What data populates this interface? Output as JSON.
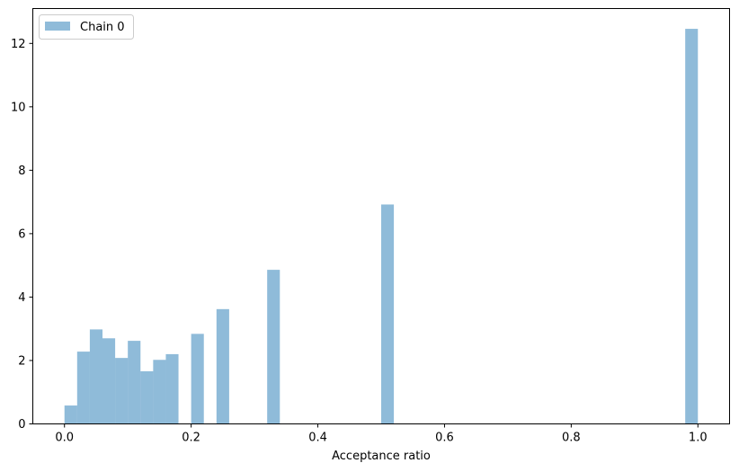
{
  "chart_data": {
    "type": "bar",
    "title": "",
    "xlabel": "Acceptance ratio",
    "ylabel": "",
    "xlim": [
      -0.05,
      1.05
    ],
    "ylim": [
      0,
      13.1
    ],
    "grid": false,
    "legend_placement": "top-left",
    "bin_width": 0.02,
    "x_ticks": [
      {
        "value": 0.0,
        "label": "0.0"
      },
      {
        "value": 0.2,
        "label": "0.2"
      },
      {
        "value": 0.4,
        "label": "0.4"
      },
      {
        "value": 0.6,
        "label": "0.6"
      },
      {
        "value": 0.8,
        "label": "0.8"
      },
      {
        "value": 1.0,
        "label": "1.0"
      }
    ],
    "y_ticks": [
      {
        "value": 0,
        "label": "0"
      },
      {
        "value": 2,
        "label": "2"
      },
      {
        "value": 4,
        "label": "4"
      },
      {
        "value": 6,
        "label": "6"
      },
      {
        "value": 8,
        "label": "8"
      },
      {
        "value": 10,
        "label": "10"
      },
      {
        "value": 12,
        "label": "12"
      }
    ],
    "series": [
      {
        "name": "Chain 0",
        "color": "#1f77b4",
        "opacity": 0.5,
        "bins": [
          {
            "x0": 0.0,
            "x1": 0.02,
            "value": 0.58
          },
          {
            "x0": 0.02,
            "x1": 0.04,
            "value": 2.28
          },
          {
            "x0": 0.04,
            "x1": 0.06,
            "value": 2.98
          },
          {
            "x0": 0.06,
            "x1": 0.08,
            "value": 2.7
          },
          {
            "x0": 0.08,
            "x1": 0.1,
            "value": 2.08
          },
          {
            "x0": 0.1,
            "x1": 0.12,
            "value": 2.62
          },
          {
            "x0": 0.12,
            "x1": 0.14,
            "value": 1.66
          },
          {
            "x0": 0.14,
            "x1": 0.16,
            "value": 2.02
          },
          {
            "x0": 0.16,
            "x1": 0.18,
            "value": 2.2
          },
          {
            "x0": 0.2,
            "x1": 0.22,
            "value": 2.84
          },
          {
            "x0": 0.24,
            "x1": 0.26,
            "value": 3.62
          },
          {
            "x0": 0.32,
            "x1": 0.34,
            "value": 4.86
          },
          {
            "x0": 0.5,
            "x1": 0.52,
            "value": 6.92
          },
          {
            "x0": 0.98,
            "x1": 1.0,
            "value": 12.46
          }
        ]
      }
    ]
  }
}
